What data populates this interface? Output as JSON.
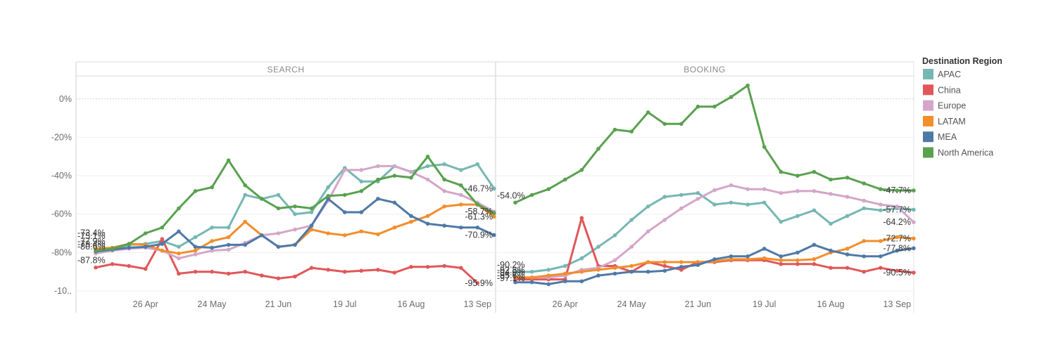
{
  "chart_data": {
    "type": "line",
    "panels": [
      "SEARCH",
      "BOOKING"
    ],
    "x": [
      "05 Apr",
      "12 Apr",
      "19 Apr",
      "26 Apr",
      "03 May",
      "10 May",
      "17 May",
      "24 May",
      "31 May",
      "07 Jun",
      "14 Jun",
      "21 Jun",
      "28 Jun",
      "05 Jul",
      "12 Jul",
      "19 Jul",
      "26 Jul",
      "02 Aug",
      "09 Aug",
      "16 Aug",
      "23 Aug",
      "30 Aug",
      "06 Sep",
      "13 Sep",
      "20 Sep"
    ],
    "x_ticks": [
      "26 Apr",
      "24 May",
      "21 Jun",
      "19 Jul",
      "16 Aug",
      "13 Sep"
    ],
    "y_ticks": [
      "0%",
      "-20%",
      "-40%",
      "-60%",
      "-80%",
      "-10.."
    ],
    "ylim": [
      -100,
      12
    ],
    "legend_title": "Destination Region",
    "legend_position": "right",
    "series": [
      {
        "name": "APAC",
        "color": "#76b7b2",
        "search": [
          -78.5,
          -78.5,
          -76,
          -75.5,
          -74,
          -77,
          -72,
          -67,
          -67,
          -50,
          -52,
          -50,
          -60,
          -59,
          -46,
          -36,
          -43,
          -43,
          -35,
          -38,
          -35,
          -34,
          -37,
          -34,
          -46.7
        ],
        "booking": [
          -90.2,
          -90,
          -89,
          -87,
          -83,
          -77,
          -71,
          -63,
          -56,
          -51,
          -50,
          -49,
          -55,
          -54,
          -55,
          -54,
          -64,
          -61,
          -58,
          -65,
          -61,
          -57,
          -58,
          -57,
          -57.7
        ]
      },
      {
        "name": "China",
        "color": "#e15759",
        "search": [
          -87.8,
          -86,
          -87,
          -88.5,
          -73,
          -91,
          -90,
          -90,
          -91,
          -90,
          -92,
          -93.5,
          -92.5,
          -88,
          -89,
          -90,
          -89.5,
          -89,
          -90.5,
          -87.5,
          -87.5,
          -87,
          -88,
          -95.9,
          null
        ],
        "booking": [
          -94,
          -94,
          -94,
          -94,
          -62,
          -87,
          -87,
          -90,
          -85,
          -87,
          -89,
          -85,
          -85,
          -84,
          -84,
          -84,
          -86,
          -86,
          -86,
          -88,
          -88,
          -90,
          -88,
          -89.5,
          -90.5
        ]
      },
      {
        "name": "Europe",
        "color": "#d4a6c8",
        "search": [
          -80.5,
          -79,
          -78,
          -77.5,
          -79,
          -83,
          -81,
          -79,
          -78.5,
          -75,
          -71,
          -70,
          -68,
          -66,
          -53,
          -37,
          -37,
          -35,
          -35,
          -38,
          -42,
          -48,
          -50,
          -54,
          -58.7
        ],
        "booking": [
          -93,
          -93,
          -93,
          -92,
          -89,
          -88,
          -84,
          -77,
          -69,
          -63,
          -57,
          -52,
          -47.5,
          -45,
          -47,
          -47,
          -49,
          -48,
          -48,
          -49.5,
          -51,
          -53,
          -55,
          -56,
          -64.2
        ]
      },
      {
        "name": "LATAM",
        "color": "#f28e2b",
        "search": [
          -78,
          -77.5,
          -75.5,
          -76,
          -79,
          -80.5,
          -79,
          -74,
          -72,
          -64,
          -71,
          -77,
          -76,
          -68,
          -70,
          -71,
          -69,
          -70.5,
          -67,
          -64,
          -61,
          -56,
          -55,
          -55,
          -61.3
        ],
        "booking": [
          -93,
          -93,
          -92,
          -91,
          -90,
          -89,
          -88,
          -87,
          -85,
          -85,
          -85,
          -85,
          -84.5,
          -83.5,
          -83.5,
          -83,
          -84,
          -84,
          -83.5,
          -80,
          -78,
          -74,
          -74,
          -72,
          -72.7
        ]
      },
      {
        "name": "MEA",
        "color": "#4e79a7",
        "search": [
          -79.5,
          -78.5,
          -77.5,
          -77,
          -75.5,
          -69,
          -77,
          -77.5,
          -76,
          -76,
          -71,
          -77,
          -76,
          -66,
          -52,
          -59,
          -59,
          -52,
          -54,
          -61,
          -65,
          -66,
          -67,
          -67,
          -70.9
        ],
        "booking": [
          -95.5,
          -95.5,
          -96.5,
          -95,
          -95,
          -92,
          -91,
          -90,
          -90,
          -89.5,
          -87.5,
          -86.5,
          -83.5,
          -82,
          -82,
          -78,
          -82,
          -80,
          -76,
          -79,
          -81,
          -82,
          -82,
          -79,
          -77.8
        ]
      },
      {
        "name": "North America",
        "color": "#59a14f",
        "search": [
          -79,
          -78,
          -75.5,
          -70,
          -67,
          -57,
          -48,
          -46,
          -32,
          -45,
          -52,
          -57,
          -56,
          -57,
          -50.5,
          -50,
          -48,
          -42,
          -40,
          -41,
          -30,
          -42,
          -45,
          -55,
          -59.5
        ],
        "booking": [
          -54,
          -50,
          -47,
          -42,
          -37,
          -26,
          -16,
          -17,
          -7,
          -13,
          -13,
          -4,
          -4,
          1,
          7,
          -25,
          -38,
          -40,
          -38,
          -42,
          -41,
          -44,
          -47,
          -47.7,
          -47.7
        ]
      }
    ],
    "labels": {
      "search": [
        {
          "text": "-75.1%",
          "side": "left"
        },
        {
          "text": "-87.8%",
          "side": "left"
        },
        {
          "text": "-73.4%",
          "side": "left"
        },
        {
          "text": "-77.9%",
          "side": "left"
        },
        {
          "text": "-79.4%",
          "side": "left"
        },
        {
          "text": "-80.6%",
          "side": "left"
        },
        {
          "text": "-46.7%",
          "side": "right"
        },
        {
          "text": "-58.7%",
          "side": "right"
        },
        {
          "text": "-61.3%",
          "side": "right"
        },
        {
          "text": "-70.9%",
          "side": "right"
        },
        {
          "text": "-95.9%",
          "side": "right"
        }
      ],
      "booking": [
        {
          "text": "-54.0%",
          "side": "left"
        },
        {
          "text": "-90.2%",
          "side": "left"
        },
        {
          "text": "-92.8%",
          "side": "left"
        },
        {
          "text": "-94.0%",
          "side": "left"
        },
        {
          "text": "-95.6%",
          "side": "left"
        },
        {
          "text": "-97.1%",
          "side": "left"
        },
        {
          "text": "-47.7%",
          "side": "right"
        },
        {
          "text": "-57.7%",
          "side": "right"
        },
        {
          "text": "-64.2%",
          "side": "right"
        },
        {
          "text": "-72.7%",
          "side": "right"
        },
        {
          "text": "-77.8%",
          "side": "right"
        },
        {
          "text": "-90.5%",
          "side": "right"
        }
      ]
    }
  }
}
